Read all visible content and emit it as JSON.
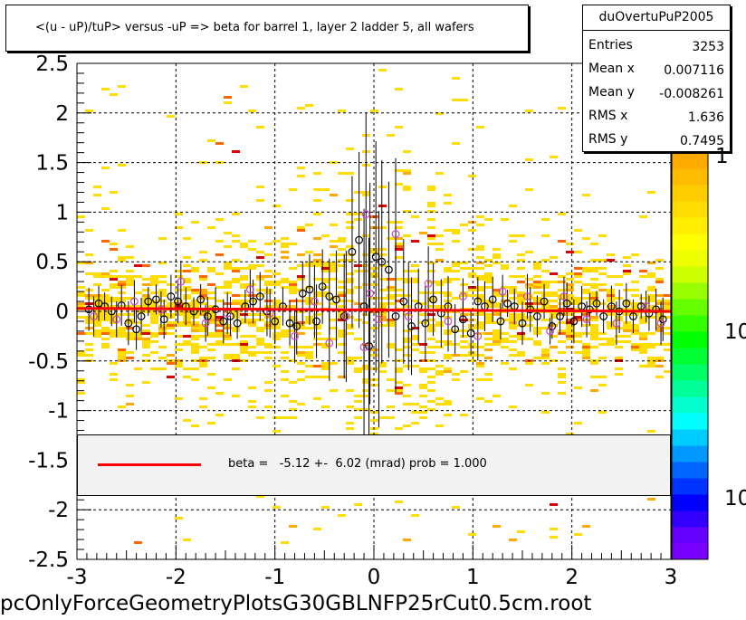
{
  "chart_data": {
    "type": "scatter",
    "title": "<(u - uP)/tuP> versus  -uP => beta for barrel 1, layer 2 ladder 5, all wafers",
    "xlabel": "",
    "ylabel": "",
    "xlim": [
      -3,
      3
    ],
    "ylim": [
      -2.5,
      2.5
    ],
    "grid": true,
    "x_ticks": [
      "-3",
      "-2",
      "-1",
      "0",
      "1",
      "2",
      "3"
    ],
    "y_ticks": [
      "-2.5",
      "-2",
      "-1.5",
      "-1",
      "-0.5",
      "0",
      "0.5",
      "1",
      "1.5",
      "2",
      "2.5"
    ],
    "z_scale": "log",
    "z_ticks": [
      "1",
      "10",
      "10"
    ],
    "fit": {
      "legend_text": "beta =   -5.12 +-  6.02 (mrad) prob = 1.000",
      "color": "#ff0000",
      "y_at_xmin": 0.03,
      "y_at_xmax": 0.0
    },
    "series": [
      {
        "marker": "open-circle-black",
        "color": "#000000",
        "points": [
          [
            -2.88,
            0.02
          ],
          [
            -2.78,
            0.08
          ],
          [
            -2.72,
            0.05
          ],
          [
            -2.65,
            0.0
          ],
          [
            -2.55,
            0.06
          ],
          [
            -2.48,
            -0.12
          ],
          [
            -2.4,
            -0.18
          ],
          [
            -2.35,
            -0.05
          ],
          [
            -2.28,
            0.1
          ],
          [
            -2.2,
            0.12
          ],
          [
            -2.12,
            -0.08
          ],
          [
            -2.05,
            0.15
          ],
          [
            -1.98,
            0.1
          ],
          [
            -1.9,
            0.05
          ],
          [
            -1.82,
            0.0
          ],
          [
            -1.75,
            0.12
          ],
          [
            -1.68,
            -0.05
          ],
          [
            -1.6,
            0.02
          ],
          [
            -1.52,
            -0.1
          ],
          [
            -1.45,
            -0.05
          ],
          [
            -1.38,
            -0.12
          ],
          [
            -1.3,
            0.05
          ],
          [
            -1.22,
            0.1
          ],
          [
            -1.15,
            0.15
          ],
          [
            -1.08,
            0.0
          ],
          [
            -1.0,
            -0.1
          ],
          [
            -0.92,
            0.05
          ],
          [
            -0.85,
            -0.12
          ],
          [
            -0.78,
            -0.15
          ],
          [
            -0.72,
            0.18
          ],
          [
            -0.65,
            0.22
          ],
          [
            -0.58,
            -0.1
          ],
          [
            -0.52,
            0.25
          ],
          [
            -0.45,
            0.15
          ],
          [
            -0.38,
            0.12
          ],
          [
            -0.3,
            -0.05
          ],
          [
            -0.22,
            0.6
          ],
          [
            -0.15,
            0.72
          ],
          [
            -0.1,
            0.05
          ],
          [
            -0.05,
            -0.35
          ],
          [
            0.02,
            0.55
          ],
          [
            0.08,
            0.5
          ],
          [
            0.15,
            0.42
          ],
          [
            0.22,
            -0.05
          ],
          [
            0.3,
            0.1
          ],
          [
            0.38,
            -0.15
          ],
          [
            0.45,
            0.05
          ],
          [
            0.52,
            -0.12
          ],
          [
            0.6,
            0.12
          ],
          [
            0.68,
            -0.02
          ],
          [
            0.75,
            0.05
          ],
          [
            0.82,
            -0.18
          ],
          [
            0.9,
            -0.08
          ],
          [
            0.98,
            -0.22
          ],
          [
            1.05,
            0.1
          ],
          [
            1.12,
            0.05
          ],
          [
            1.2,
            0.12
          ],
          [
            1.28,
            -0.1
          ],
          [
            1.35,
            0.08
          ],
          [
            1.42,
            0.05
          ],
          [
            1.5,
            -0.12
          ],
          [
            1.58,
            0.02
          ],
          [
            1.65,
            -0.05
          ],
          [
            1.72,
            0.1
          ],
          [
            1.8,
            -0.15
          ],
          [
            1.88,
            -0.05
          ],
          [
            1.95,
            0.08
          ],
          [
            2.02,
            -0.1
          ],
          [
            2.1,
            0.05
          ],
          [
            2.18,
            0.02
          ],
          [
            2.25,
            0.08
          ],
          [
            2.32,
            -0.05
          ],
          [
            2.4,
            0.05
          ],
          [
            2.48,
            0.0
          ],
          [
            2.55,
            0.08
          ],
          [
            2.62,
            -0.05
          ],
          [
            2.7,
            0.05
          ],
          [
            2.78,
            -0.02
          ],
          [
            2.85,
            0.02
          ],
          [
            2.92,
            -0.08
          ]
        ]
      },
      {
        "marker": "open-circle-magenta",
        "color": "#cc44cc",
        "points": [
          [
            -2.83,
            -0.05
          ],
          [
            -2.6,
            -0.08
          ],
          [
            -2.42,
            0.1
          ],
          [
            -2.15,
            0.02
          ],
          [
            -1.95,
            0.3
          ],
          [
            -1.7,
            -0.12
          ],
          [
            -1.48,
            -0.02
          ],
          [
            -1.25,
            0.22
          ],
          [
            -1.05,
            -0.02
          ],
          [
            -0.8,
            -0.25
          ],
          [
            -0.6,
            0.1
          ],
          [
            -0.45,
            -0.32
          ],
          [
            -0.28,
            -0.05
          ],
          [
            -0.1,
            -0.36
          ],
          [
            -0.08,
            0.98
          ],
          [
            -0.04,
            0.18
          ],
          [
            0.05,
            -0.08
          ],
          [
            0.22,
            0.78
          ],
          [
            0.35,
            -0.05
          ],
          [
            0.55,
            0.28
          ],
          [
            0.75,
            -0.1
          ],
          [
            0.9,
            0.15
          ],
          [
            1.05,
            -0.25
          ],
          [
            1.3,
            0.2
          ],
          [
            1.55,
            0.15
          ],
          [
            1.78,
            -0.2
          ],
          [
            1.92,
            0.15
          ],
          [
            2.15,
            -0.08
          ],
          [
            2.45,
            -0.12
          ],
          [
            2.75,
            0.05
          ],
          [
            2.9,
            -0.12
          ]
        ]
      }
    ]
  },
  "stats": {
    "title": "duOvertuPuP2005",
    "rows": [
      {
        "label": "Entries",
        "value": "3253"
      },
      {
        "label": "Mean x",
        "value": "0.007116"
      },
      {
        "label": "Mean y",
        "value": "-0.008261"
      },
      {
        "label": "RMS x",
        "value": "1.636"
      },
      {
        "label": "RMS y",
        "value": "0.7495"
      }
    ]
  },
  "palette": {
    "colors": [
      "#7700ff",
      "#6600ff",
      "#3300ff",
      "#0000ff",
      "#0033ff",
      "#0066ff",
      "#0099ff",
      "#00ccff",
      "#00ffff",
      "#00ffcc",
      "#00ff99",
      "#00ff66",
      "#00ff33",
      "#00ff00",
      "#33ff00",
      "#66ff00",
      "#99ff00",
      "#ccff00",
      "#eeff00",
      "#ffff00",
      "#ffee00",
      "#ffdd00",
      "#ffcc00",
      "#ffbb00",
      "#ffaa00"
    ]
  },
  "footer": "pcOnlyForceGeometryPlotsG30GBLNFP25rCut0.5cm.root"
}
